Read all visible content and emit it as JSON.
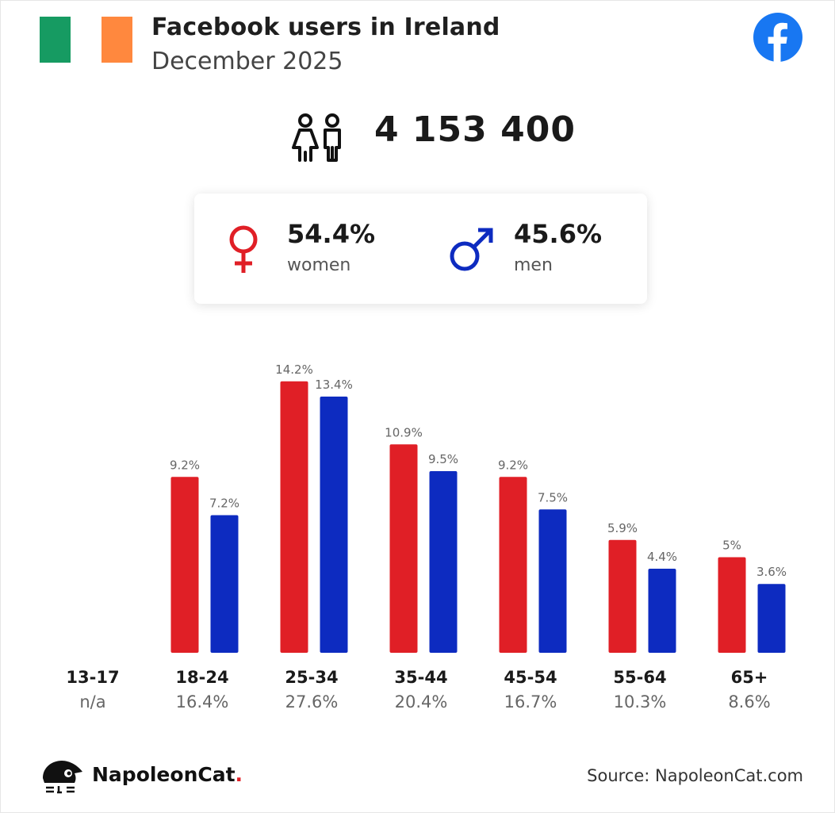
{
  "header": {
    "title": "Facebook users in Ireland",
    "subtitle": "December 2025",
    "flag_colors": [
      "#169b62",
      "#ffffff",
      "#ff883e"
    ],
    "logo_icon": "facebook-logo-icon",
    "logo_color": "#1877f2"
  },
  "total": {
    "icon": "users-icon",
    "value": "4 153 400"
  },
  "gender": {
    "women": {
      "icon": "female-symbol-icon",
      "pct": "54.4%",
      "label": "women",
      "color": "#e01f26"
    },
    "men": {
      "icon": "male-symbol-icon",
      "pct": "45.6%",
      "label": "men",
      "color": "#0d2bc0"
    }
  },
  "chart_data": {
    "type": "bar",
    "categories": [
      "13-17",
      "18-24",
      "25-34",
      "35-44",
      "45-54",
      "55-64",
      "65+"
    ],
    "category_totals": [
      "n/a",
      "16.4%",
      "27.6%",
      "20.4%",
      "16.7%",
      "10.3%",
      "8.6%"
    ],
    "series": [
      {
        "color": "#e01f26",
        "values": [
          null,
          9.2,
          14.2,
          10.9,
          9.2,
          5.9,
          5
        ],
        "labels": [
          "",
          "9.2%",
          "14.2%",
          "10.9%",
          "9.2%",
          "5.9%",
          "5%"
        ]
      },
      {
        "color": "#0d2bc0",
        "values": [
          null,
          7.2,
          13.4,
          9.5,
          7.5,
          4.4,
          3.6
        ],
        "labels": [
          "",
          "7.2%",
          "13.4%",
          "9.5%",
          "7.5%",
          "4.4%",
          "3.6%"
        ]
      }
    ],
    "ylim": [
      0,
      16
    ],
    "grid": false,
    "legend": "none"
  },
  "footer": {
    "brand": "NapoleonCat",
    "brand_suffix": ".",
    "brand_icon": "napoleoncat-logo-icon",
    "source": "Source: NapoleonCat.com"
  }
}
